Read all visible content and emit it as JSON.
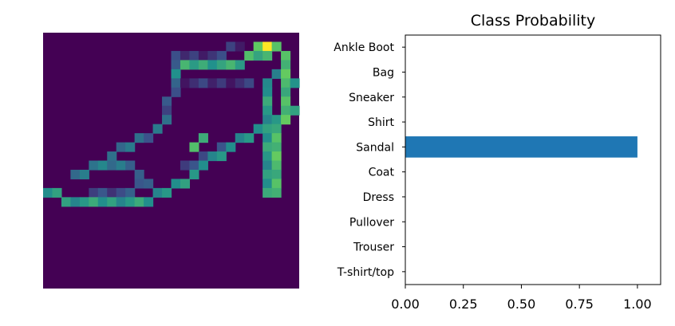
{
  "image_panel": {
    "colormap": "viridis",
    "grid_size": 28,
    "strokes": [
      {
        "points": [
          [
            0,
            17
          ],
          [
            4,
            18
          ],
          [
            9,
            18
          ],
          [
            13,
            17
          ],
          [
            17,
            14
          ],
          [
            20,
            12
          ],
          [
            23,
            10
          ],
          [
            25,
            9
          ],
          [
            27,
            8
          ]
        ],
        "value": 0.45
      },
      {
        "points": [
          [
            3,
            15
          ],
          [
            6,
            14
          ],
          [
            9,
            14
          ],
          [
            11,
            16
          ],
          [
            13,
            17
          ]
        ],
        "value": 0.3
      },
      {
        "points": [
          [
            6,
            14
          ],
          [
            8,
            12
          ],
          [
            10,
            11
          ],
          [
            12,
            10
          ],
          [
            13,
            9
          ]
        ],
        "value": 0.25
      },
      {
        "points": [
          [
            13,
            9
          ],
          [
            13,
            7
          ],
          [
            14,
            5
          ],
          [
            14,
            4
          ],
          [
            14,
            3
          ]
        ],
        "value": 0.2
      },
      {
        "points": [
          [
            14,
            4
          ],
          [
            15,
            3
          ],
          [
            17,
            3
          ],
          [
            20,
            3
          ],
          [
            22,
            2
          ],
          [
            24,
            2
          ],
          [
            25,
            1
          ]
        ],
        "value": 0.5
      },
      {
        "points": [
          [
            25,
            1
          ],
          [
            26,
            3
          ],
          [
            26,
            5
          ],
          [
            26,
            8
          ],
          [
            25,
            10
          ],
          [
            25,
            13
          ],
          [
            25,
            17
          ]
        ],
        "value": 0.6
      },
      {
        "points": [
          [
            24,
            6
          ],
          [
            24,
            10
          ],
          [
            24,
            14
          ],
          [
            24,
            17
          ]
        ],
        "value": 0.45
      },
      {
        "points": [
          [
            24,
            5
          ],
          [
            25,
            4
          ],
          [
            27,
            5
          ],
          [
            28,
            6
          ]
        ],
        "value": 0.35
      },
      {
        "points": [
          [
            14,
            2
          ],
          [
            18,
            2
          ],
          [
            21,
            1
          ]
        ],
        "value": 0.08
      },
      {
        "points": [
          [
            14,
            5
          ],
          [
            18,
            5
          ],
          [
            22,
            5
          ]
        ],
        "value": 0.06
      },
      {
        "points": [
          [
            15,
            14
          ],
          [
            17,
            13
          ],
          [
            19,
            12
          ]
        ],
        "value": 0.1
      },
      {
        "points": [
          [
            5,
            17
          ],
          [
            8,
            17
          ],
          [
            11,
            16
          ]
        ],
        "value": 0.15
      }
    ],
    "highlights": [
      {
        "x": 24,
        "y": 1,
        "value": 1.0
      },
      {
        "x": 23,
        "y": 1,
        "value": 0.75
      },
      {
        "x": 22,
        "y": 2,
        "value": 0.7
      },
      {
        "x": 16,
        "y": 12,
        "value": 0.7
      },
      {
        "x": 17,
        "y": 11,
        "value": 0.62
      }
    ]
  },
  "chart_data": {
    "type": "bar",
    "orientation": "horizontal",
    "title": "Class Probability",
    "xlabel": "",
    "ylabel": "",
    "categories": [
      "T-shirt/top",
      "Trouser",
      "Pullover",
      "Dress",
      "Coat",
      "Sandal",
      "Shirt",
      "Sneaker",
      "Bag",
      "Ankle Boot"
    ],
    "values": [
      0,
      0,
      0,
      0,
      0,
      1.0,
      0,
      0,
      0,
      0
    ],
    "xlim": [
      0,
      1.1
    ],
    "xticks": [
      "0.00",
      "0.25",
      "0.50",
      "0.75",
      "1.00"
    ],
    "xtick_values": [
      0,
      0.25,
      0.5,
      0.75,
      1.0
    ],
    "grid": false,
    "bar_color": "#1f77b4",
    "axis_color": "#000000"
  }
}
